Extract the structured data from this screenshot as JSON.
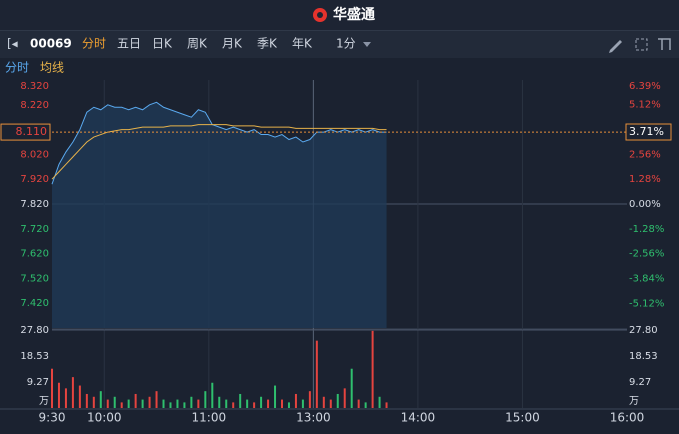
{
  "header": {
    "title": "华盛通"
  },
  "toolbar": {
    "symbol": "00069",
    "tabs": [
      "分时",
      "五日",
      "日K",
      "周K",
      "月K",
      "季K",
      "年K"
    ],
    "interval": "1分"
  },
  "chart_data": {
    "type": "intraday",
    "legend": [
      "分时",
      "均线"
    ],
    "x": [
      0,
      4,
      8,
      12,
      16,
      20,
      24,
      28,
      32,
      36,
      40,
      44,
      48,
      52,
      56,
      60,
      64,
      68,
      72,
      76,
      80,
      84,
      88,
      92,
      96,
      100,
      104,
      108,
      112,
      116,
      120,
      124,
      128,
      132,
      136,
      140,
      144,
      148,
      152,
      156,
      160,
      164,
      168,
      172,
      176,
      180,
      184,
      188,
      192
    ],
    "xlim": [
      0,
      330
    ],
    "xticks": [
      {
        "value": 0,
        "label": "9:30"
      },
      {
        "value": 30,
        "label": "10:00"
      },
      {
        "value": 90,
        "label": "11:00"
      },
      {
        "value": 150,
        "label": "13:00"
      },
      {
        "value": 210,
        "label": "14:00"
      },
      {
        "value": 270,
        "label": "15:00"
      },
      {
        "value": 330,
        "label": "16:00"
      }
    ],
    "series": [
      {
        "name": "分时",
        "color": "#5aa9ef",
        "values": [
          7.9,
          7.98,
          8.03,
          8.07,
          8.12,
          8.19,
          8.21,
          8.2,
          8.22,
          8.21,
          8.21,
          8.2,
          8.21,
          8.2,
          8.22,
          8.23,
          8.21,
          8.2,
          8.19,
          8.18,
          8.17,
          8.2,
          8.19,
          8.14,
          8.13,
          8.12,
          8.13,
          8.12,
          8.11,
          8.12,
          8.1,
          8.1,
          8.09,
          8.1,
          8.08,
          8.09,
          8.07,
          8.08,
          8.11,
          8.11,
          8.12,
          8.11,
          8.12,
          8.11,
          8.12,
          8.11,
          8.12,
          8.11,
          8.11
        ]
      },
      {
        "name": "均线",
        "color": "#e8b34a",
        "values": [
          7.92,
          7.95,
          7.98,
          8.01,
          8.04,
          8.07,
          8.09,
          8.1,
          8.11,
          8.115,
          8.12,
          8.12,
          8.125,
          8.13,
          8.13,
          8.13,
          8.13,
          8.135,
          8.135,
          8.135,
          8.135,
          8.14,
          8.14,
          8.14,
          8.14,
          8.14,
          8.135,
          8.135,
          8.135,
          8.135,
          8.13,
          8.13,
          8.13,
          8.13,
          8.13,
          8.125,
          8.125,
          8.125,
          8.125,
          8.125,
          8.125,
          8.125,
          8.125,
          8.125,
          8.125,
          8.125,
          8.125,
          8.12,
          8.12
        ]
      }
    ],
    "ylim": [
      7.32,
      8.32
    ],
    "yticks": [
      {
        "value": 8.32,
        "label": "8.320"
      },
      {
        "value": 8.22,
        "label": "8.220"
      },
      {
        "value": 8.02,
        "label": "8.020"
      },
      {
        "value": 7.92,
        "label": "7.920"
      },
      {
        "value": 7.82,
        "label": "7.820"
      },
      {
        "value": 7.72,
        "label": "7.720"
      },
      {
        "value": 7.62,
        "label": "7.620"
      },
      {
        "value": 7.52,
        "label": "7.520"
      },
      {
        "value": 7.42,
        "label": "7.420"
      }
    ],
    "y2lim": [
      -6.39,
      6.39
    ],
    "y2ticks": [
      {
        "value": 6.39,
        "label": "6.39%"
      },
      {
        "value": 5.12,
        "label": "5.12%"
      },
      {
        "value": 2.56,
        "label": "2.56%"
      },
      {
        "value": 1.28,
        "label": "1.28%"
      },
      {
        "value": 0,
        "label": "0.00%"
      },
      {
        "value": -1.28,
        "label": "-1.28%"
      },
      {
        "value": -2.56,
        "label": "-2.56%"
      },
      {
        "value": -3.84,
        "label": "-3.84%"
      },
      {
        "value": -5.12,
        "label": "-5.12%"
      }
    ],
    "last_price": {
      "value": 8.11,
      "label": "8.110"
    },
    "last_change": {
      "value": 3.71,
      "label": "3.71%"
    },
    "volume": {
      "values": [
        14,
        9,
        7,
        11,
        8,
        5,
        4,
        6,
        3,
        4,
        2,
        3,
        5,
        3,
        4,
        6,
        3,
        2,
        3,
        2,
        4,
        3,
        6,
        9,
        4,
        3,
        2,
        5,
        3,
        2,
        4,
        3,
        8,
        3,
        2,
        5,
        3,
        6,
        24,
        4,
        3,
        5,
        7,
        14,
        3,
        2,
        27.5,
        4,
        2
      ],
      "ylim": [
        0,
        27.8
      ],
      "yticks": [
        {
          "value": 27.8,
          "label": "27.80"
        },
        18.53,
        9.27
      ],
      "unit": "万"
    },
    "up_color": "#e5443f",
    "down_color": "#2fbf6e"
  }
}
